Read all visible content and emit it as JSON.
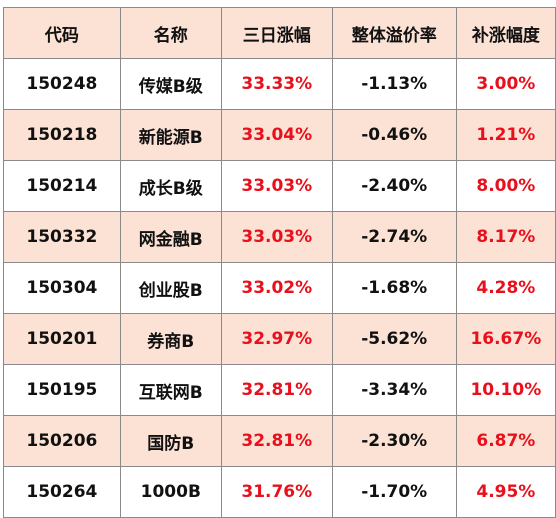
{
  "table": {
    "headers": [
      "代码",
      "名称",
      "三日涨幅",
      "整体溢价率",
      "补涨幅度"
    ],
    "rows": [
      [
        "150248",
        "传媒B级",
        "33.33%",
        "-1.13%",
        "3.00%"
      ],
      [
        "150218",
        "新能源B",
        "33.04%",
        "-0.46%",
        "1.21%"
      ],
      [
        "150214",
        "成长B级",
        "33.03%",
        "-2.40%",
        "8.00%"
      ],
      [
        "150332",
        "网金融B",
        "33.03%",
        "-2.74%",
        "8.17%"
      ],
      [
        "150304",
        "创业股B",
        "33.02%",
        "-1.68%",
        "4.28%"
      ],
      [
        "150201",
        "券商B",
        "32.97%",
        "-5.62%",
        "16.67%"
      ],
      [
        "150195",
        "互联网B",
        "32.81%",
        "-3.34%",
        "10.10%"
      ],
      [
        "150206",
        "国防B",
        "32.81%",
        "-2.30%",
        "6.87%"
      ],
      [
        "150264",
        "1000B",
        "31.76%",
        "-1.70%",
        "4.95%"
      ]
    ]
  },
  "colors": {
    "header_bg": "#fbe2d4",
    "stripe_bg": "#fbe2d4",
    "highlight_text": "#e8101c",
    "text": "#111111"
  }
}
